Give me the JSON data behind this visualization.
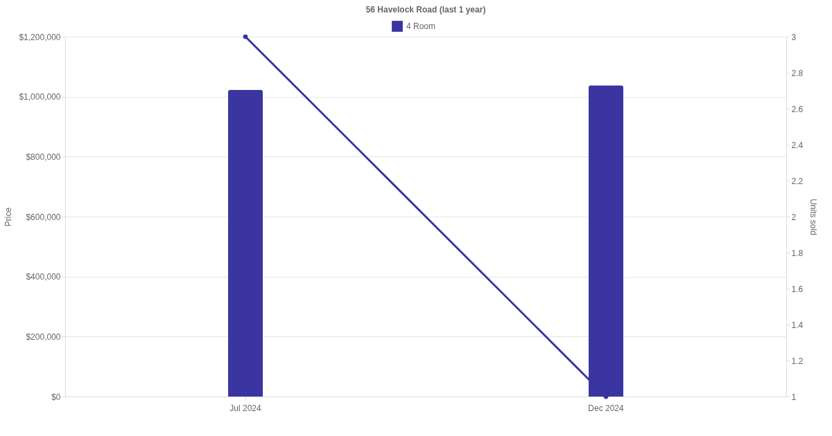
{
  "chart_data": {
    "type": "bar",
    "title": "56 Havelock Road (last 1 year)",
    "categories": [
      "Jul 2024",
      "Dec 2024"
    ],
    "series": [
      {
        "name": "4 Room",
        "color": "#3a35a0",
        "values": [
          1023000,
          1038000
        ]
      },
      {
        "type": "line",
        "axis": "y2",
        "color": "#3a35a0",
        "values": [
          3,
          1
        ],
        "marker": "circle"
      }
    ],
    "ylabel": "Price",
    "y2label": "Units sold",
    "ylim": [
      0,
      1200000
    ],
    "yticks": [
      {
        "value": 0,
        "label": "$0"
      },
      {
        "value": 200000,
        "label": "$200,000"
      },
      {
        "value": 400000,
        "label": "$400,000"
      },
      {
        "value": 600000,
        "label": "$600,000"
      },
      {
        "value": 800000,
        "label": "$800,000"
      },
      {
        "value": 1000000,
        "label": "$1,000,000"
      },
      {
        "value": 1200000,
        "label": "$1,200,000"
      }
    ],
    "y2lim": [
      1,
      3
    ],
    "y2ticks": [
      1,
      1.2,
      1.4,
      1.6,
      1.8,
      2,
      2.2,
      2.4,
      2.6,
      2.8,
      3
    ],
    "grid": "y",
    "legend": "top"
  }
}
